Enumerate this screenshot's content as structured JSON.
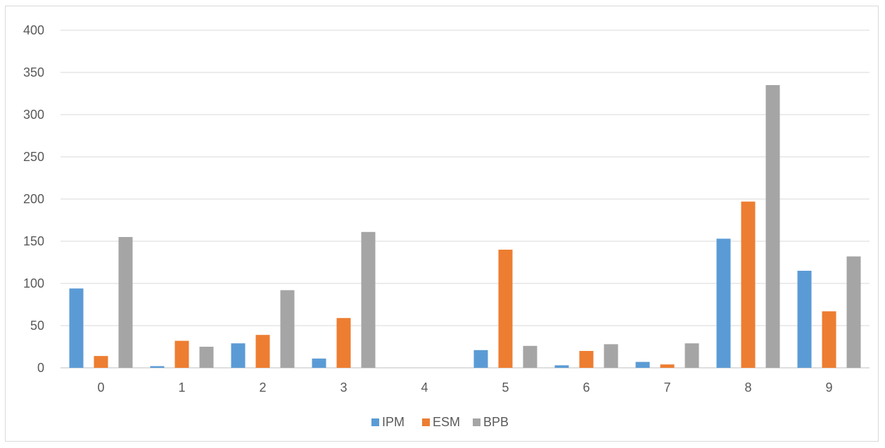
{
  "chart_data": {
    "type": "bar",
    "categories": [
      "0",
      "1",
      "2",
      "3",
      "4",
      "5",
      "6",
      "7",
      "8",
      "9"
    ],
    "series": [
      {
        "name": "IPM",
        "color": "#5b9bd5",
        "values": [
          94,
          2,
          29,
          11,
          0,
          21,
          3,
          7,
          153,
          115
        ]
      },
      {
        "name": "ESM",
        "color": "#ed7d31",
        "values": [
          14,
          32,
          39,
          59,
          0,
          140,
          20,
          4,
          197,
          67
        ]
      },
      {
        "name": "BPB",
        "color": "#a5a5a5",
        "values": [
          155,
          25,
          92,
          161,
          0,
          26,
          28,
          29,
          335,
          132
        ]
      }
    ],
    "yticks": [
      0,
      50,
      100,
      150,
      200,
      250,
      300,
      350,
      400
    ],
    "ylim": [
      0,
      400
    ],
    "title": "",
    "xlabel": "",
    "ylabel": "",
    "grid": true,
    "legend_position": "bottom"
  }
}
